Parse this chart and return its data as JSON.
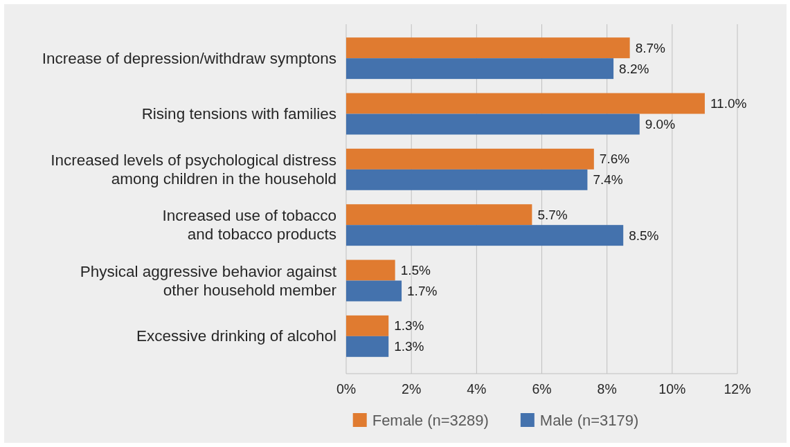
{
  "chart_data": {
    "type": "bar",
    "orientation": "horizontal",
    "categories": [
      "Increase of depression/withdraw symptons",
      "Rising tensions with families",
      "Increased levels of psychological distress\namong children in the household",
      "Increased use of tobacco\nand tobacco products",
      "Physical aggressive behavior against\nother household member",
      "Excessive drinking of alcohol"
    ],
    "series": [
      {
        "name": "Female (n=3289)",
        "color": "#e07b30",
        "values": [
          8.7,
          11.0,
          7.6,
          5.7,
          1.5,
          1.3
        ],
        "value_labels": [
          "8.7%",
          "11.0%",
          "7.6%",
          "5.7%",
          "1.5%",
          "1.3%"
        ]
      },
      {
        "name": "Male (n=3179)",
        "color": "#4472ad",
        "values": [
          8.2,
          9.0,
          7.4,
          8.5,
          1.7,
          1.3
        ],
        "value_labels": [
          "8.2%",
          "9.0%",
          "7.4%",
          "8.5%",
          "1.7%",
          "1.3%"
        ]
      }
    ],
    "xlim": [
      0,
      12
    ],
    "xticks": [
      {
        "value": 0,
        "label": "0%"
      },
      {
        "value": 2,
        "label": "2%"
      },
      {
        "value": 4,
        "label": "4%"
      },
      {
        "value": 6,
        "label": "6%"
      },
      {
        "value": 8,
        "label": "8%"
      },
      {
        "value": 10,
        "label": "10%"
      },
      {
        "value": 12,
        "label": "12%"
      }
    ],
    "grid": "x",
    "legend": "bottom"
  }
}
